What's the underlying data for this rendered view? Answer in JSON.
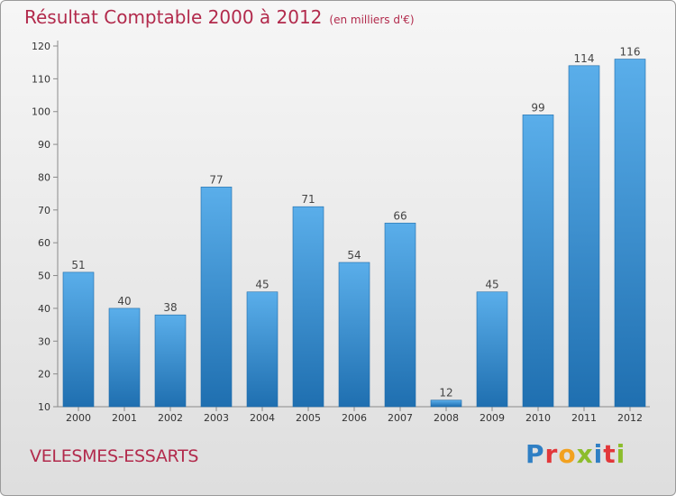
{
  "title": "Résultat Comptable 2000 à 2012",
  "unit_note": "(en milliers d'€)",
  "commune": "VELESMES-ESSARTS",
  "logo": "Proxiti",
  "colors": {
    "title": "#b22a4c",
    "bar_top": "#5aaeea",
    "bar_bottom": "#1f6fb0",
    "logo_letters": [
      "#2f7fc4",
      "#e2373a",
      "#f2a11f",
      "#8cbd2c",
      "#2f7fc4",
      "#e2373a",
      "#8cbd2c"
    ]
  },
  "chart_data": {
    "type": "bar",
    "categories": [
      "2000",
      "2001",
      "2002",
      "2003",
      "2004",
      "2005",
      "2006",
      "2007",
      "2008",
      "2009",
      "2010",
      "2011",
      "2012"
    ],
    "values": [
      51,
      40,
      38,
      77,
      45,
      71,
      54,
      66,
      12,
      45,
      99,
      114,
      116
    ],
    "data_labels": [
      "51",
      "40",
      "38",
      "77",
      "45",
      "71",
      "54",
      "66",
      "12",
      "45",
      "99",
      "114",
      "116"
    ],
    "title": "Résultat Comptable 2000 à 2012",
    "ylim": [
      10,
      120
    ],
    "yticks": [
      10,
      20,
      30,
      40,
      50,
      60,
      70,
      80,
      90,
      100,
      110,
      120
    ],
    "grid": false,
    "legend": "none"
  }
}
